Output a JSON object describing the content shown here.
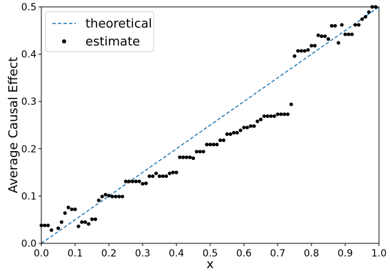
{
  "chart_data": {
    "type": "scatter",
    "title": "",
    "xlabel": "x",
    "ylabel": "Average Causal Effect",
    "xlim": [
      0.0,
      1.0
    ],
    "ylim": [
      0.0,
      0.5
    ],
    "xticks": [
      "0.0",
      "0.1",
      "0.2",
      "0.3",
      "0.4",
      "0.5",
      "0.6",
      "0.7",
      "0.8",
      "0.9",
      "1.0"
    ],
    "yticks": [
      "0.0",
      "0.1",
      "0.2",
      "0.3",
      "0.4",
      "0.5"
    ],
    "grid": false,
    "legend_position": "upper-left",
    "series": [
      {
        "name": "theoretical",
        "kind": "line",
        "style": "dashed",
        "color": "#1f77b4",
        "x": [
          0.0,
          1.0
        ],
        "y": [
          0.0,
          0.5
        ]
      },
      {
        "name": "estimate",
        "kind": "scatter",
        "color": "#000000",
        "x": [
          0.0,
          0.01,
          0.02,
          0.03,
          0.05,
          0.06,
          0.07,
          0.08,
          0.09,
          0.1,
          0.11,
          0.12,
          0.13,
          0.14,
          0.15,
          0.16,
          0.17,
          0.18,
          0.19,
          0.2,
          0.21,
          0.22,
          0.23,
          0.24,
          0.25,
          0.26,
          0.27,
          0.28,
          0.29,
          0.3,
          0.31,
          0.32,
          0.33,
          0.34,
          0.35,
          0.36,
          0.37,
          0.38,
          0.39,
          0.4,
          0.41,
          0.42,
          0.43,
          0.44,
          0.45,
          0.46,
          0.47,
          0.48,
          0.49,
          0.5,
          0.51,
          0.52,
          0.53,
          0.54,
          0.55,
          0.56,
          0.57,
          0.58,
          0.59,
          0.6,
          0.61,
          0.62,
          0.63,
          0.64,
          0.65,
          0.66,
          0.67,
          0.68,
          0.69,
          0.7,
          0.71,
          0.72,
          0.73,
          0.74,
          0.75,
          0.76,
          0.77,
          0.78,
          0.79,
          0.8,
          0.81,
          0.82,
          0.83,
          0.84,
          0.85,
          0.86,
          0.87,
          0.88,
          0.89,
          0.9,
          0.91,
          0.92,
          0.93,
          0.94,
          0.95,
          0.96,
          0.97,
          0.98,
          0.99
        ],
        "y": [
          0.038,
          0.038,
          0.038,
          0.028,
          0.032,
          0.045,
          0.064,
          0.076,
          0.072,
          0.072,
          0.036,
          0.045,
          0.045,
          0.041,
          0.051,
          0.051,
          0.091,
          0.099,
          0.103,
          0.101,
          0.099,
          0.099,
          0.099,
          0.099,
          0.131,
          0.131,
          0.131,
          0.131,
          0.131,
          0.126,
          0.127,
          0.142,
          0.142,
          0.148,
          0.142,
          0.142,
          0.142,
          0.148,
          0.15,
          0.15,
          0.182,
          0.182,
          0.182,
          0.182,
          0.18,
          0.194,
          0.194,
          0.194,
          0.209,
          0.209,
          0.209,
          0.209,
          0.218,
          0.218,
          0.231,
          0.231,
          0.234,
          0.234,
          0.239,
          0.245,
          0.245,
          0.248,
          0.248,
          0.258,
          0.262,
          0.269,
          0.269,
          0.269,
          0.269,
          0.273,
          0.273,
          0.273,
          0.273,
          0.294,
          0.396,
          0.407,
          0.407,
          0.407,
          0.409,
          0.418,
          0.418,
          0.44,
          0.438,
          0.438,
          0.432,
          0.46,
          0.46,
          0.424,
          0.462,
          0.442,
          0.442,
          0.442,
          0.462,
          0.462,
          0.474,
          0.479,
          0.489,
          0.5,
          0.5
        ]
      }
    ]
  }
}
